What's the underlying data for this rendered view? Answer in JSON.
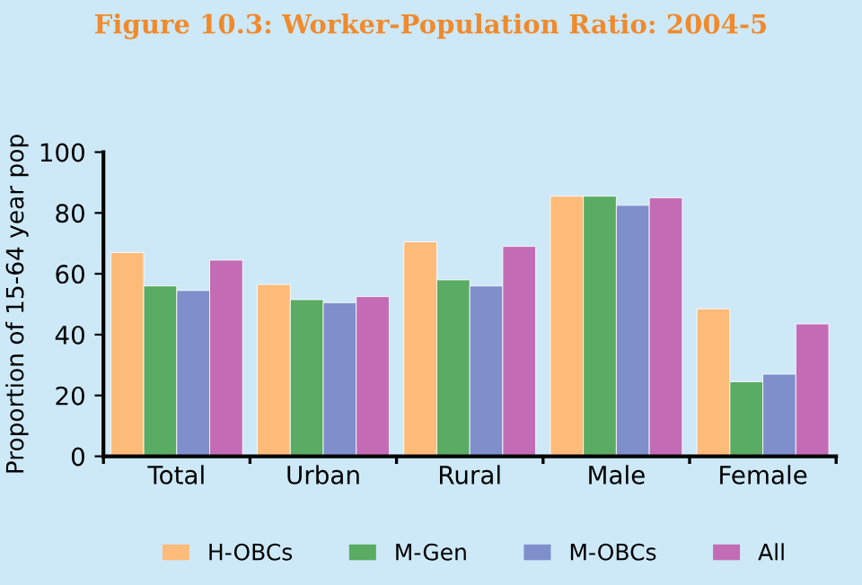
{
  "chart_data": {
    "type": "bar",
    "title": "Figure 10.3: Worker-Population Ratio: 2004-5",
    "ylabel": "Proportion of 15-64 year pop",
    "categories": [
      "Total",
      "Urban",
      "Rural",
      "Male",
      "Female"
    ],
    "series": [
      {
        "name": "H-OBCs",
        "color": "#fdbb7a",
        "values": [
          67,
          56.5,
          70.5,
          85.5,
          48.5
        ]
      },
      {
        "name": "M-Gen",
        "color": "#5aab63",
        "values": [
          56,
          51.5,
          58,
          85.5,
          24.5
        ]
      },
      {
        "name": "M-OBCs",
        "color": "#7f8fcc",
        "values": [
          54.5,
          50.5,
          56,
          82.5,
          27
        ]
      },
      {
        "name": "All",
        "color": "#c36cb5",
        "values": [
          64.5,
          52.5,
          69,
          85,
          43.5
        ]
      }
    ],
    "ylim": [
      0,
      100
    ],
    "yticks": [
      0,
      20,
      40,
      60,
      80,
      100
    ],
    "grid": false,
    "legend": "bottom"
  }
}
